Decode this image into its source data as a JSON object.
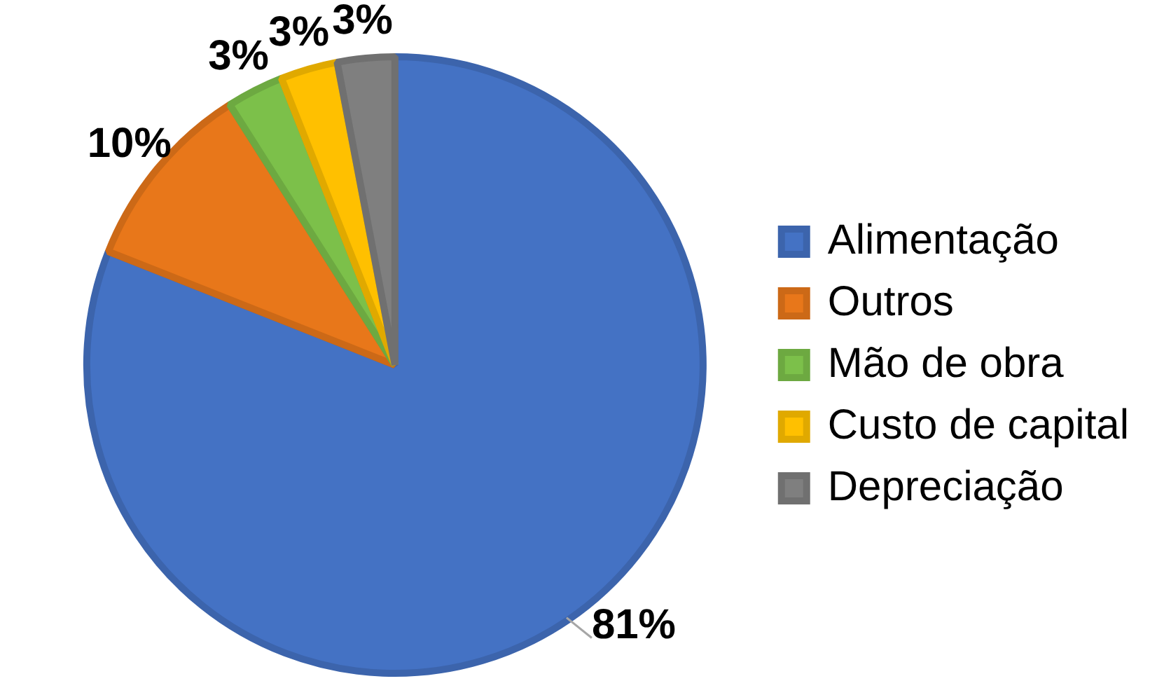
{
  "chart_data": {
    "type": "pie",
    "categories": [
      "Alimentação",
      "Outros",
      "Mão de obra",
      "Custo de capital",
      "Depreciação"
    ],
    "values": [
      81,
      10,
      3,
      3,
      3
    ],
    "colors": [
      "#4472c4",
      "#e8771a",
      "#7cc04a",
      "#ffc000",
      "#7f7f7f"
    ],
    "value_labels": [
      "81%",
      "10%",
      "3%",
      "3%",
      "3%"
    ],
    "legend": "right"
  }
}
